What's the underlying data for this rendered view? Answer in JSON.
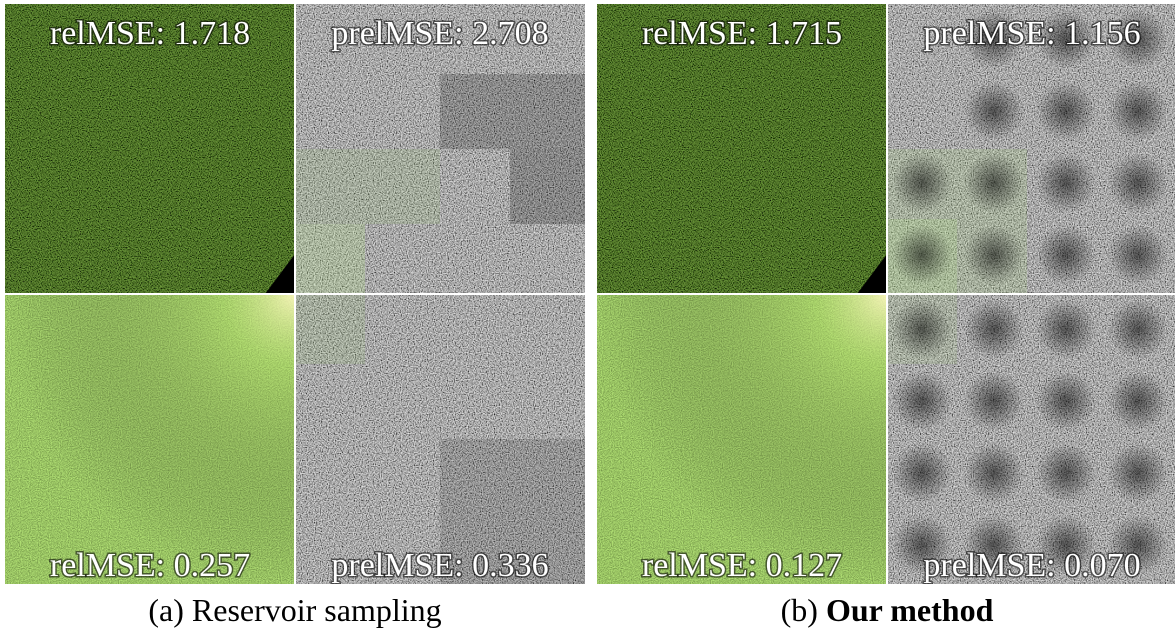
{
  "panels": [
    {
      "label": "(a)",
      "caption": "Reservoir sampling",
      "quadrants": [
        "relMSE: 1.718",
        "prelMSE: 2.708",
        "relMSE: 0.257",
        "prelMSE: 0.336"
      ]
    },
    {
      "label": "(b)",
      "caption": "Our method",
      "quadrants": [
        "relMSE: 1.715",
        "prelMSE: 1.156",
        "relMSE: 0.127",
        "prelMSE: 0.070"
      ]
    }
  ]
}
